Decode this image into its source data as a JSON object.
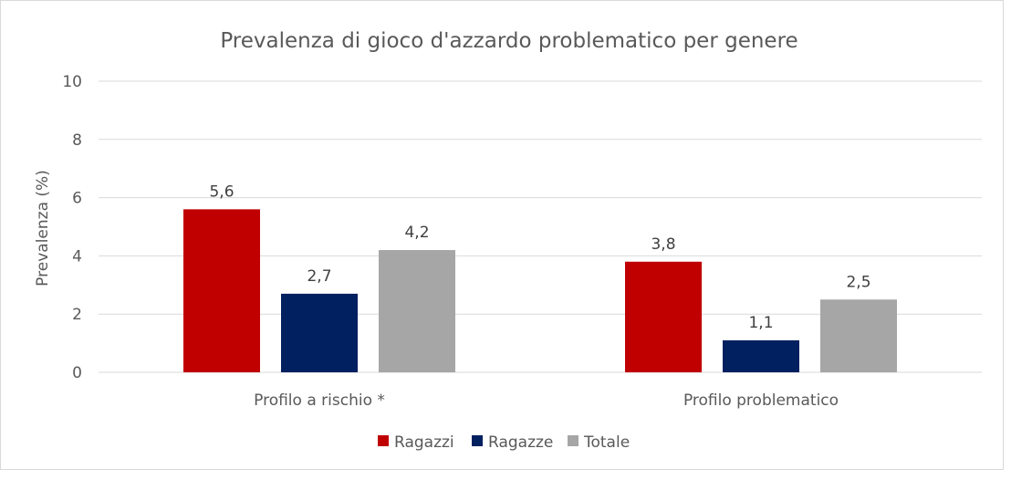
{
  "chart_data": {
    "type": "bar",
    "title": "Prevalenza di gioco d'azzardo problematico per genere",
    "ylabel": "Prevalenza (%)",
    "xlabel": "",
    "categories": [
      "Profilo a rischio *",
      "Profilo problematico"
    ],
    "series": [
      {
        "name": "Ragazzi",
        "color": "#C00000",
        "values": [
          5.6,
          3.8
        ],
        "labels": [
          "5,6",
          "3,8"
        ]
      },
      {
        "name": "Ragazze",
        "color": "#002060",
        "values": [
          2.7,
          1.1
        ],
        "labels": [
          "2,7",
          "1,1"
        ]
      },
      {
        "name": "Totale",
        "color": "#A6A6A6",
        "values": [
          4.2,
          2.5
        ],
        "labels": [
          "4,2",
          "2,5"
        ]
      }
    ],
    "ylim": [
      0,
      10
    ],
    "yticks": [
      0,
      2,
      4,
      6,
      8,
      10
    ],
    "grid": true,
    "legend": "bottom"
  }
}
